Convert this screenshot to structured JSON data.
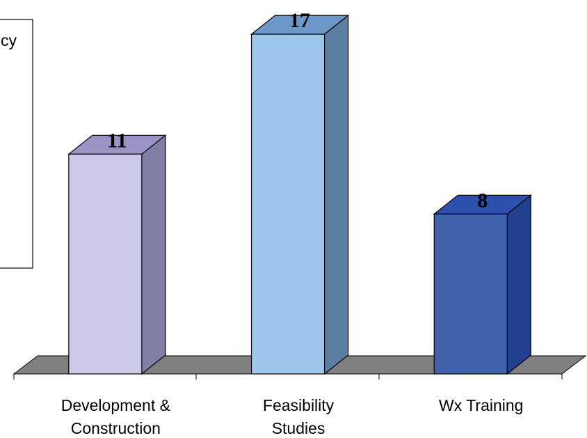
{
  "legend": {
    "text_fragment": "cy"
  },
  "chart_data": {
    "type": "bar",
    "categories": [
      [
        "Development  &",
        "Construction"
      ],
      [
        "Feasibility",
        "Studies"
      ],
      [
        "Wx Training"
      ]
    ],
    "values": [
      11,
      17,
      8
    ],
    "value_labels": [
      "11",
      "17",
      "8"
    ],
    "title": "",
    "xlabel": "",
    "ylabel": "",
    "grid": false,
    "three_d": true,
    "colors": {
      "bar_front": [
        "#ccc8e8",
        "#9dc7ea",
        "#3f62ab"
      ],
      "bar_side": [
        "#7f7ea4",
        "#5a7fa3",
        "#223f90"
      ],
      "bar_top": [
        "#9993c6",
        "#6b98c8",
        "#2d4fb0"
      ],
      "floor": "#808080"
    }
  }
}
